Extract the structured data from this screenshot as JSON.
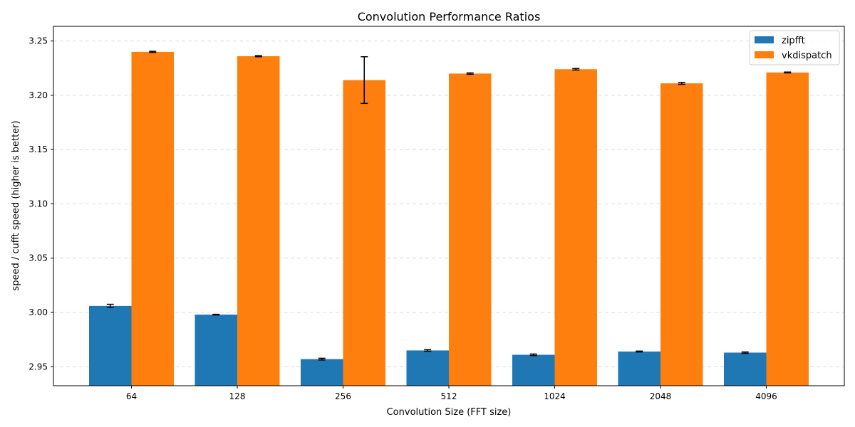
{
  "chart_data": {
    "type": "bar",
    "title": "Convolution Performance Ratios",
    "xlabel": "Convolution Size (FFT size)",
    "ylabel": "speed / cufft speed (higher is better)",
    "categories": [
      "64",
      "128",
      "256",
      "512",
      "1024",
      "2048",
      "4096"
    ],
    "series": [
      {
        "name": "zipfft",
        "color": "#1f77b4",
        "values": [
          3.006,
          2.998,
          2.957,
          2.965,
          2.961,
          2.964,
          2.963
        ],
        "errors": [
          0.0015,
          0.0003,
          0.0008,
          0.0007,
          0.0007,
          0.0004,
          0.0006
        ]
      },
      {
        "name": "vkdispatch",
        "color": "#ff7f0e",
        "values": [
          3.24,
          3.236,
          3.214,
          3.22,
          3.224,
          3.211,
          3.221
        ],
        "errors": [
          0.0005,
          0.0005,
          0.0215,
          0.0006,
          0.0007,
          0.0009,
          0.0004
        ]
      }
    ],
    "ylim": [
      2.9325,
      3.2635
    ],
    "yticks": [
      "2.95",
      "3.00",
      "3.05",
      "3.10",
      "3.15",
      "3.20",
      "3.25"
    ],
    "grid": "y-dashed",
    "legend": "top-right"
  }
}
